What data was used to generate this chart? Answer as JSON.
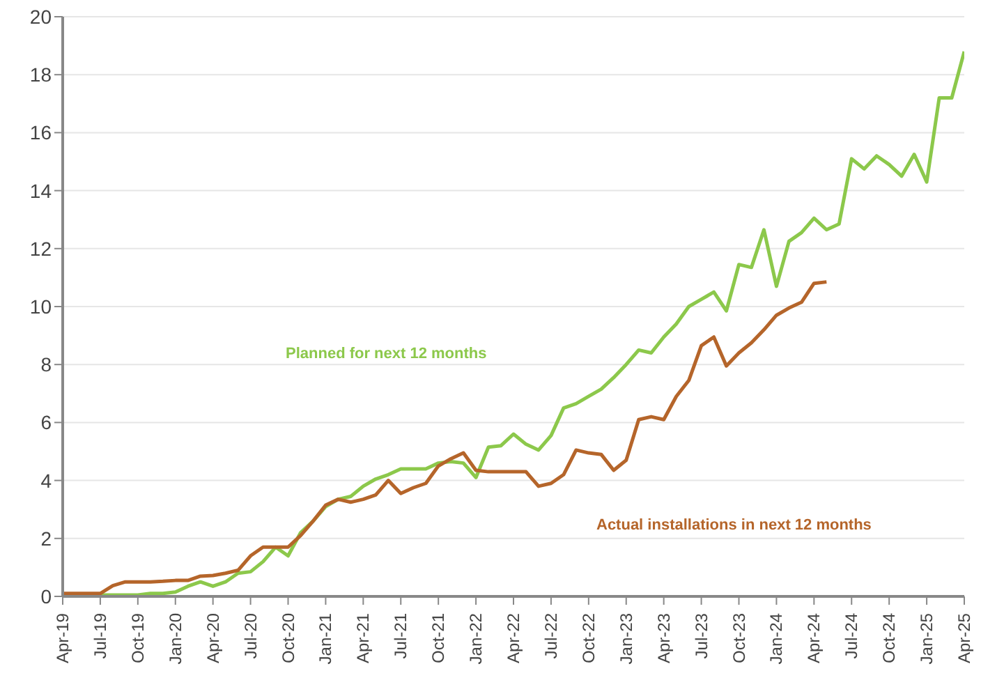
{
  "chart_data": {
    "type": "line",
    "categories": [
      "Apr-19",
      null,
      null,
      "Jul-19",
      null,
      null,
      "Oct-19",
      null,
      null,
      "Jan-20",
      null,
      null,
      "Apr-20",
      null,
      null,
      "Jul-20",
      null,
      null,
      "Oct-20",
      null,
      null,
      "Jan-21",
      null,
      null,
      "Apr-21",
      null,
      null,
      "Jul-21",
      null,
      null,
      "Oct-21",
      null,
      null,
      "Jan-22",
      null,
      null,
      "Apr-22",
      null,
      null,
      "Jul-22",
      null,
      null,
      "Oct-22",
      null,
      null,
      "Jan-23",
      null,
      null,
      "Apr-23",
      null,
      null,
      "Jul-23",
      null,
      null,
      "Oct-23",
      null,
      null,
      "Jan-24",
      null,
      null,
      "Apr-24",
      null,
      null,
      "Jul-24",
      null,
      null,
      "Oct-24",
      null,
      null,
      "Jan-25",
      null,
      null,
      "Apr-25"
    ],
    "series": [
      {
        "name": "Planned for next 12 months",
        "color": "#8cc84b",
        "values": [
          null,
          null,
          0.05,
          0.05,
          0.05,
          0.05,
          0.05,
          0.1,
          0.1,
          0.15,
          0.35,
          0.5,
          0.35,
          0.5,
          0.8,
          0.85,
          1.2,
          1.7,
          1.4,
          2.2,
          2.6,
          3.1,
          3.35,
          3.45,
          3.8,
          4.05,
          4.2,
          4.4,
          4.4,
          4.4,
          4.6,
          4.65,
          4.6,
          4.1,
          5.15,
          5.2,
          5.6,
          5.25,
          5.05,
          5.55,
          6.5,
          6.65,
          6.9,
          7.15,
          7.55,
          8.0,
          8.5,
          8.4,
          8.95,
          9.4,
          10.0,
          10.25,
          10.5,
          9.85,
          11.45,
          11.35,
          12.65,
          10.7,
          12.25,
          12.55,
          13.05,
          12.65,
          12.85,
          15.1,
          14.75,
          15.2,
          14.9,
          14.5,
          15.25,
          14.3,
          17.2,
          17.2,
          18.8
        ]
      },
      {
        "name": "Actual installations in next 12 months",
        "color": "#b5652a",
        "values": [
          0.1,
          0.1,
          0.1,
          0.1,
          0.37,
          0.5,
          0.5,
          0.5,
          0.52,
          0.55,
          0.55,
          0.7,
          0.72,
          0.8,
          0.9,
          1.4,
          1.7,
          1.7,
          1.7,
          2.1,
          2.6,
          3.15,
          3.35,
          3.25,
          3.35,
          3.5,
          4.0,
          3.55,
          3.75,
          3.9,
          4.5,
          4.75,
          4.95,
          4.35,
          4.3,
          4.3,
          4.3,
          4.3,
          3.8,
          3.9,
          4.2,
          5.05,
          4.95,
          4.9,
          4.35,
          4.7,
          6.1,
          6.2,
          6.1,
          6.9,
          7.45,
          8.65,
          8.95,
          7.95,
          8.4,
          8.75,
          9.2,
          9.7,
          9.95,
          10.15,
          10.8,
          10.85,
          null,
          null,
          null,
          null,
          null,
          null,
          null,
          null,
          null,
          null,
          null
        ]
      }
    ],
    "ylim": [
      0,
      20
    ],
    "yticks": [
      0,
      2,
      4,
      6,
      8,
      10,
      12,
      14,
      16,
      18,
      20
    ],
    "grid": "y",
    "legend": false,
    "marker": "none",
    "line_style": "solid"
  }
}
